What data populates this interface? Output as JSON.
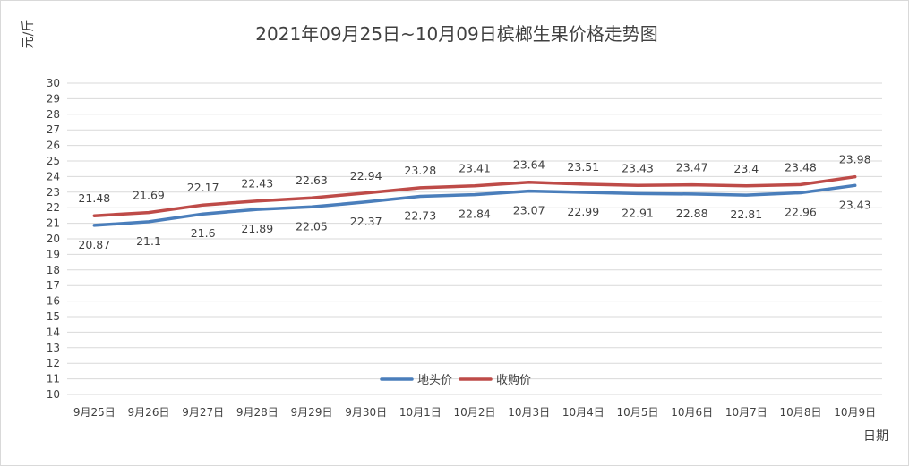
{
  "chart_data": {
    "type": "line",
    "title": "2021年09月25日~10月09日槟榔生果价格走势图",
    "ylabel": "元/斤",
    "xlabel": "日期",
    "ylim": [
      10,
      30
    ],
    "y_ticks": [
      10,
      11,
      12,
      13,
      14,
      15,
      16,
      17,
      18,
      19,
      20,
      21,
      22,
      23,
      24,
      25,
      26,
      27,
      28,
      29,
      30
    ],
    "categories": [
      "9月25日",
      "9月26日",
      "9月27日",
      "9月28日",
      "9月29日",
      "9月30日",
      "10月1日",
      "10月2日",
      "10月3日",
      "10月4日",
      "10月5日",
      "10月6日",
      "10月7日",
      "10月8日",
      "10月9日"
    ],
    "grid": true,
    "legend_position": "bottom-center",
    "series": [
      {
        "name": "地头价",
        "color": "#4a7ebb",
        "label_position": "below",
        "values": [
          20.87,
          21.1,
          21.6,
          21.89,
          22.05,
          22.37,
          22.73,
          22.84,
          23.07,
          22.99,
          22.91,
          22.88,
          22.81,
          22.96,
          23.43
        ]
      },
      {
        "name": "收购价",
        "color": "#be4b48",
        "label_position": "above",
        "values": [
          21.48,
          21.69,
          22.17,
          22.43,
          22.63,
          22.94,
          23.28,
          23.41,
          23.64,
          23.51,
          23.43,
          23.47,
          23.4,
          23.48,
          23.98
        ]
      }
    ]
  }
}
